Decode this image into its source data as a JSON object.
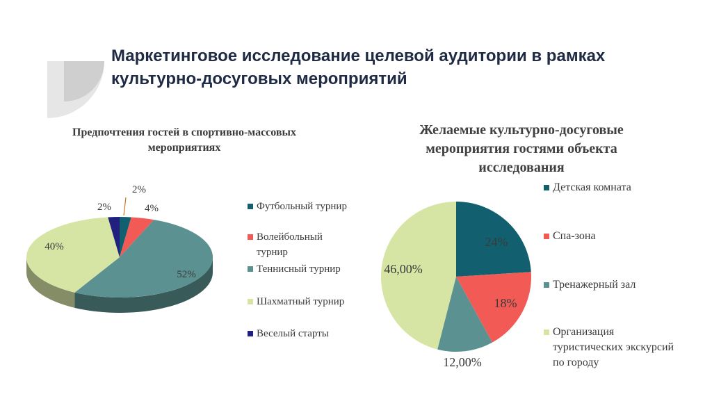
{
  "slide": {
    "title": "Маркетинговое исследование целевой аудитории в рамках культурно-досуговых мероприятий"
  },
  "chart_data": [
    {
      "type": "pie",
      "style": "3d",
      "title_lines": [
        "Предпочтения гостей в спортивно-массовых",
        "мероприятиях"
      ],
      "categories": [
        "Футбольный турнир",
        "Волейбольный турнир",
        "Теннисный турнир",
        "Шахматный турнир",
        "Веселый старты"
      ],
      "legend_lines": [
        [
          "Футбольный турнир"
        ],
        [
          "Волейбольный",
          "турнир"
        ],
        [
          "Теннисный турнир"
        ],
        [
          "Шахматный турнир"
        ],
        [
          "Веселый старты"
        ]
      ],
      "values": [
        2,
        4,
        52,
        40,
        2
      ],
      "labels": [
        "2%",
        "4%",
        "52%",
        "40%",
        "2%"
      ],
      "colors": [
        "#12606f",
        "#f25a55",
        "#5b9190",
        "#d6e4a4",
        "#21207f"
      ],
      "legend": "right"
    },
    {
      "type": "pie",
      "title_lines": [
        "Желаемые культурно-досуговые",
        "мероприятия гостями объекта",
        "исследования"
      ],
      "categories": [
        "Детская комната",
        "Спа-зона",
        "Тренажерный зал",
        "Организация туристических экскурсий по городу"
      ],
      "legend_lines": [
        [
          "Детская комната"
        ],
        [
          "Спа-зона"
        ],
        [
          "Тренажерный зал"
        ],
        [
          "Организация",
          "туристических экскурсий",
          "по городу"
        ]
      ],
      "values": [
        24,
        18,
        12,
        46
      ],
      "labels": [
        "24%",
        "18%",
        "12,00%",
        "46,00%"
      ],
      "colors": [
        "#12606f",
        "#f25a55",
        "#5b9190",
        "#d6e4a4"
      ],
      "legend": "right"
    }
  ]
}
